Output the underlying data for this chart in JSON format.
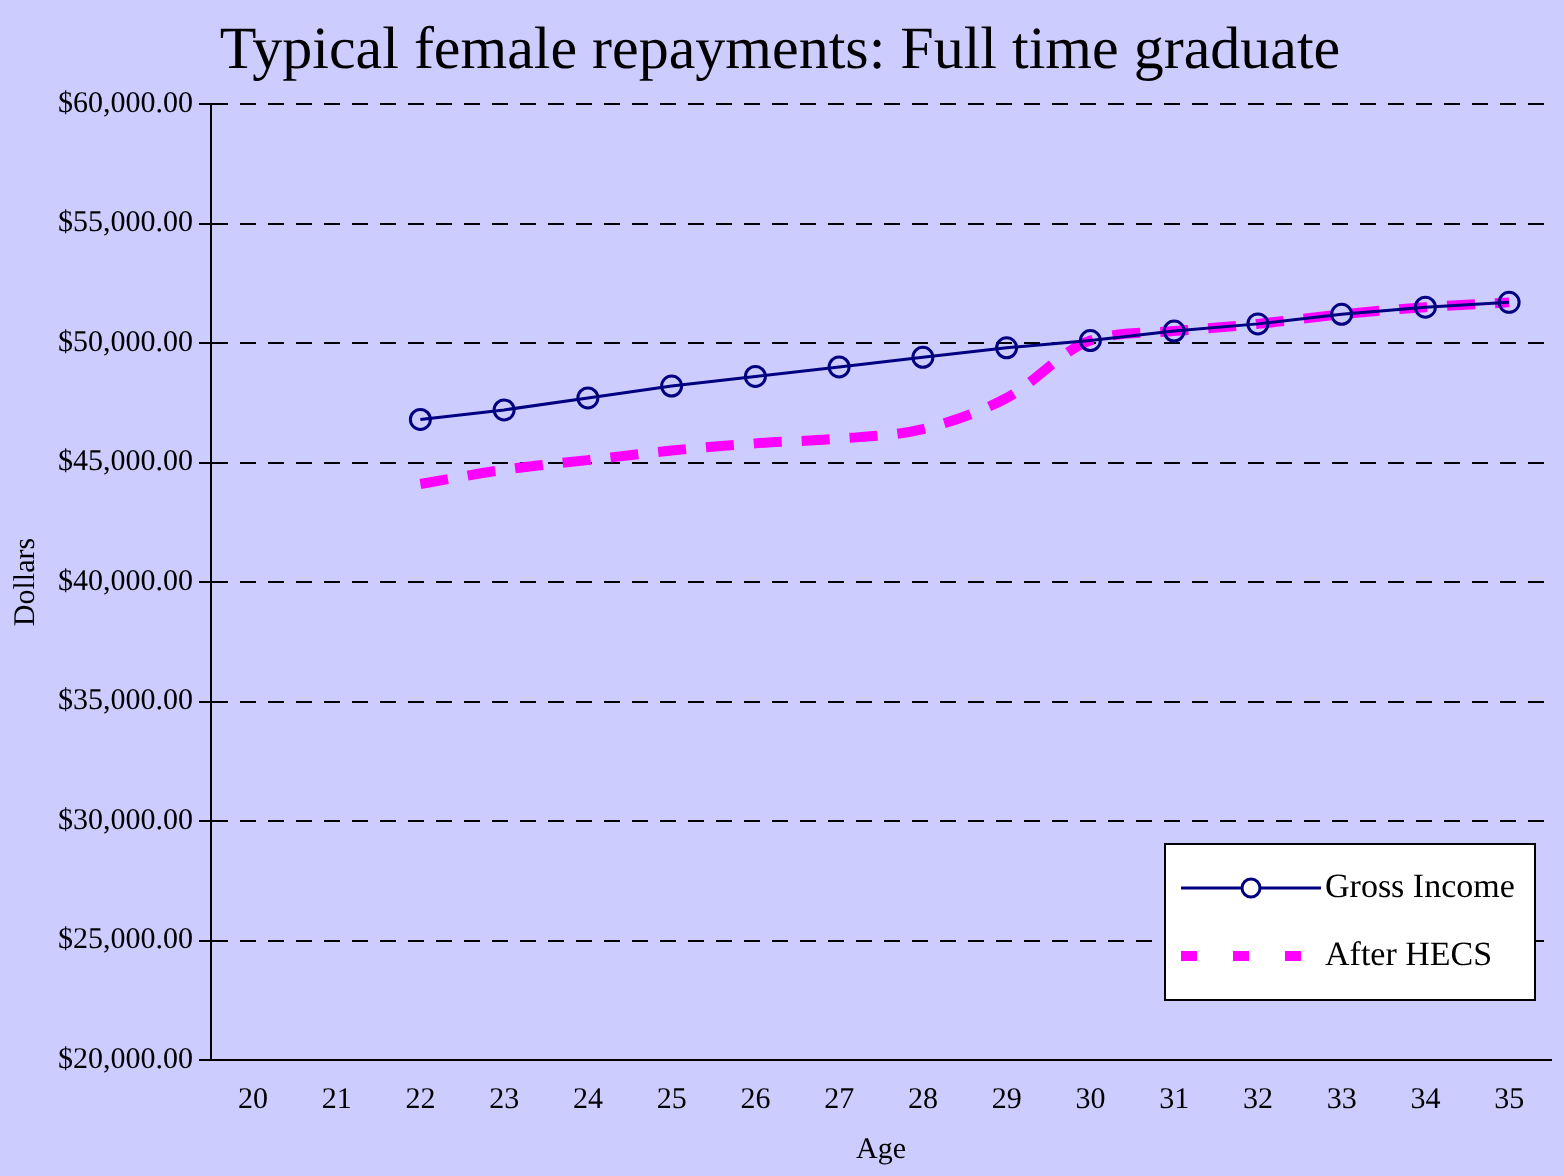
{
  "chart_data": {
    "type": "line",
    "title": "Typical female repayments: Full time graduate",
    "xlabel": "Age",
    "ylabel": "Dollars",
    "categories": [
      "20",
      "21",
      "22",
      "23",
      "24",
      "25",
      "26",
      "27",
      "28",
      "29",
      "30",
      "31",
      "32",
      "33",
      "34",
      "35"
    ],
    "series": [
      {
        "name": "Gross Income",
        "color": "#000080",
        "marker": "circle",
        "line_style": "solid",
        "values": [
          null,
          null,
          46800,
          47200,
          47700,
          48200,
          48600,
          49000,
          49400,
          49800,
          50100,
          50500,
          50800,
          51200,
          51500,
          51700
        ]
      },
      {
        "name": "After HECS",
        "color": "#ff00ff",
        "marker": "none",
        "line_style": "dashed",
        "values": [
          null,
          null,
          44100,
          44700,
          45100,
          45500,
          45800,
          46000,
          46400,
          47700,
          50100,
          50500,
          50800,
          51200,
          51500,
          51700
        ]
      }
    ],
    "ylim": [
      20000,
      60000
    ],
    "yticks": [
      {
        "value": 20000,
        "label": "$20,000.00"
      },
      {
        "value": 25000,
        "label": "$25,000.00"
      },
      {
        "value": 30000,
        "label": "$30,000.00"
      },
      {
        "value": 35000,
        "label": "$35,000.00"
      },
      {
        "value": 40000,
        "label": "$40,000.00"
      },
      {
        "value": 45000,
        "label": "$45,000.00"
      },
      {
        "value": 50000,
        "label": "$50,000.00"
      },
      {
        "value": 55000,
        "label": "$55,000.00"
      },
      {
        "value": 60000,
        "label": "$60,000.00"
      }
    ],
    "grid": "y",
    "legend": "bottom right"
  }
}
